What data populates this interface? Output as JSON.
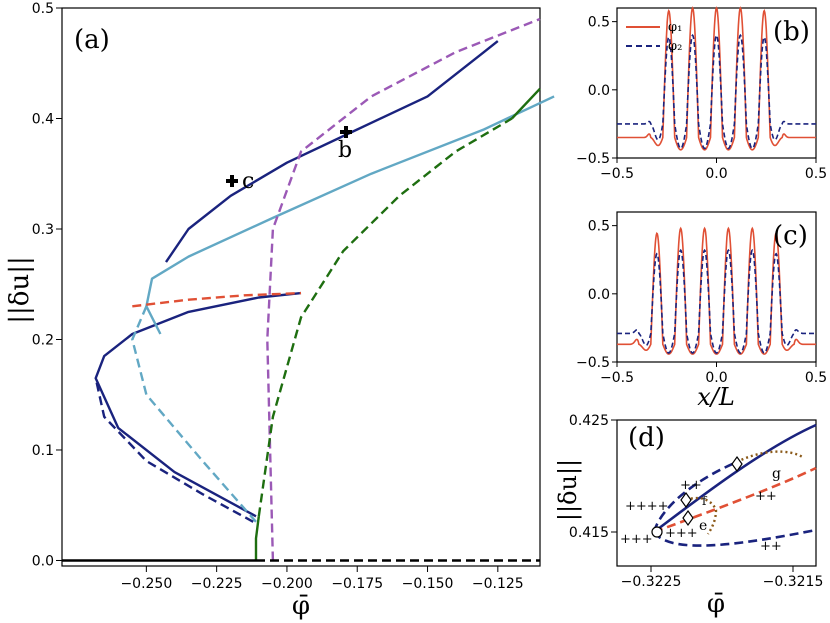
{
  "chart_data": [
    {
      "panel": "(a)",
      "type": "line",
      "xlabel": "φ̄",
      "ylabel": "||δu||",
      "xlim": [
        -0.28,
        -0.11
      ],
      "ylim": [
        -0.005,
        0.5
      ],
      "xticks": [
        "−0.250",
        "−0.225",
        "−0.200",
        "−0.175",
        "−0.150",
        "−0.125"
      ],
      "yticks": [
        "0.0",
        "0.1",
        "0.2",
        "0.3",
        "0.4",
        "0.5"
      ],
      "annotations": [
        "b",
        "c"
      ],
      "series": [
        {
          "color": "#1a237e",
          "style": "solid",
          "points": [
            [
              -0.211,
              0.04
            ],
            [
              -0.24,
              0.08
            ],
            [
              -0.26,
              0.12
            ],
            [
              -0.268,
              0.165
            ],
            [
              -0.265,
              0.185
            ],
            [
              -0.255,
              0.205
            ],
            [
              -0.235,
              0.225
            ],
            [
              -0.21,
              0.238
            ],
            [
              -0.195,
              0.242
            ]
          ]
        },
        {
          "color": "#1a237e",
          "style": "dashed",
          "points": [
            [
              -0.212,
              0.035
            ],
            [
              -0.23,
              0.06
            ],
            [
              -0.25,
              0.09
            ],
            [
              -0.265,
              0.13
            ],
            [
              -0.268,
              0.165
            ]
          ]
        },
        {
          "color": "#62a8c4",
          "style": "solid",
          "points": [
            [
              -0.245,
              0.205
            ],
            [
              -0.25,
              0.23
            ],
            [
              -0.248,
              0.255
            ],
            [
              -0.235,
              0.275
            ],
            [
              -0.205,
              0.31
            ],
            [
              -0.17,
              0.35
            ],
            [
              -0.13,
              0.39
            ],
            [
              -0.105,
              0.42
            ]
          ]
        },
        {
          "color": "#62a8c4",
          "style": "dashed",
          "points": [
            [
              -0.211,
              0.035
            ],
            [
              -0.23,
              0.09
            ],
            [
              -0.25,
              0.15
            ],
            [
              -0.255,
              0.2
            ],
            [
              -0.25,
              0.23
            ]
          ]
        },
        {
          "color": "#e05035",
          "style": "dashed",
          "points": [
            [
              -0.255,
              0.23
            ],
            [
              -0.235,
              0.236
            ],
            [
              -0.215,
              0.24
            ],
            [
              -0.195,
              0.242
            ]
          ]
        },
        {
          "color": "#1a237e",
          "style": "solid",
          "points": [
            [
              -0.243,
              0.27
            ],
            [
              -0.235,
              0.3
            ],
            [
              -0.22,
              0.33
            ],
            [
              -0.2,
              0.36
            ],
            [
              -0.175,
              0.39
            ],
            [
              -0.15,
              0.42
            ],
            [
              -0.13,
              0.46
            ],
            [
              -0.125,
              0.47
            ]
          ]
        },
        {
          "color": "#9b59b6",
          "style": "dashed",
          "points": [
            [
              -0.205,
              0.0
            ],
            [
              -0.206,
              0.1
            ],
            [
              -0.207,
              0.2
            ],
            [
              -0.205,
              0.3
            ],
            [
              -0.195,
              0.37
            ],
            [
              -0.17,
              0.42
            ],
            [
              -0.14,
              0.46
            ],
            [
              -0.11,
              0.49
            ]
          ]
        },
        {
          "color": "#1e6e10",
          "style": "solid",
          "points": [
            [
              -0.211,
              0.0
            ],
            [
              -0.211,
              0.02
            ],
            [
              -0.21,
              0.04
            ]
          ]
        },
        {
          "color": "#1e6e10",
          "style": "dashed",
          "points": [
            [
              -0.21,
              0.04
            ],
            [
              -0.205,
              0.13
            ],
            [
              -0.195,
              0.22
            ],
            [
              -0.18,
              0.28
            ],
            [
              -0.16,
              0.33
            ],
            [
              -0.14,
              0.37
            ],
            [
              -0.12,
              0.4
            ]
          ]
        },
        {
          "color": "#1e6e10",
          "style": "solid",
          "points": [
            [
              -0.12,
              0.4
            ],
            [
              -0.11,
              0.427
            ]
          ]
        },
        {
          "color": "#000000",
          "style": "solid",
          "points": [
            [
              -0.28,
              0.0
            ],
            [
              -0.211,
              0.0
            ]
          ]
        },
        {
          "color": "#000000",
          "style": "dashed",
          "points": [
            [
              -0.211,
              0.0
            ],
            [
              -0.11,
              0.0
            ]
          ]
        }
      ]
    },
    {
      "panel": "(b)",
      "type": "line",
      "xlim": [
        -0.5,
        0.5
      ],
      "ylim": [
        -0.5,
        0.6
      ],
      "xticks": [
        "−0.5",
        "0.0",
        "0.5"
      ],
      "yticks": [
        "−0.5",
        "0.0",
        "0.5"
      ],
      "series": [
        {
          "name": "φ₁",
          "color": "#e05035",
          "style": "solid",
          "peaks": 5,
          "amp": 0.6,
          "base": -0.35
        },
        {
          "name": "φ₂",
          "color": "#1a237e",
          "style": "dashed",
          "peaks": 5,
          "amp": 0.4,
          "base": -0.25
        }
      ]
    },
    {
      "panel": "(c)",
      "type": "line",
      "xlabel": "x/L",
      "xlim": [
        -0.5,
        0.5
      ],
      "ylim": [
        -0.5,
        0.6
      ],
      "xticks": [
        "−0.5",
        "0.0",
        "0.5"
      ],
      "yticks": [
        "−0.5",
        "0.0",
        "0.5"
      ],
      "series": [
        {
          "color": "#e05035",
          "style": "solid",
          "peaks": 6,
          "amp": 0.48,
          "base": -0.37
        },
        {
          "color": "#1a237e",
          "style": "dashed",
          "peaks": 6,
          "amp": 0.32,
          "base": -0.29
        }
      ]
    },
    {
      "panel": "(d)",
      "type": "line",
      "ylabel": "||δu||",
      "xlabel": "φ̄",
      "xticks": [
        "−0.3225",
        "−0.3215"
      ],
      "yticks": [
        "0.415",
        "0.425"
      ],
      "annotations": [
        "++",
        "++++",
        "+++",
        "+++",
        "++",
        "++",
        "e",
        "f",
        "g"
      ]
    }
  ]
}
